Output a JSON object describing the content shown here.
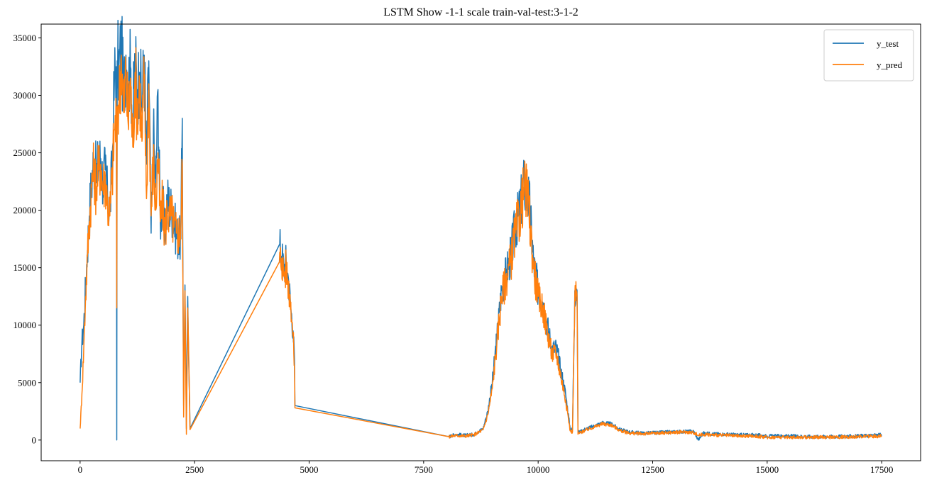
{
  "chart_data": {
    "type": "line",
    "title": "LSTM Show -1-1 scale train-val-test:3-1-2",
    "xlabel": "",
    "ylabel": "",
    "xlim": [
      -850,
      18350
    ],
    "ylim": [
      -1800,
      36200
    ],
    "xticks": [
      0,
      2500,
      5000,
      7500,
      10000,
      12500,
      15000,
      17500
    ],
    "xtick_labels": [
      "0",
      "2500",
      "5000",
      "7500",
      "10000",
      "12500",
      "15000",
      "17500"
    ],
    "yticks": [
      0,
      5000,
      10000,
      15000,
      20000,
      25000,
      30000,
      35000
    ],
    "ytick_labels": [
      "0",
      "5000",
      "10000",
      "15000",
      "20000",
      "25000",
      "30000",
      "35000"
    ],
    "grid": false,
    "legend": {
      "position": "top-right",
      "entries": [
        "y_test",
        "y_pred"
      ]
    },
    "colors": {
      "y_test": "#1f77b4",
      "y_pred": "#ff7f0e"
    },
    "series": [
      {
        "name": "y_test",
        "x": [
          0,
          40,
          80,
          120,
          160,
          200,
          250,
          300,
          350,
          400,
          450,
          500,
          550,
          600,
          650,
          700,
          750,
          790,
          800,
          810,
          850,
          900,
          950,
          1000,
          1050,
          1100,
          1150,
          1200,
          1250,
          1300,
          1350,
          1400,
          1450,
          1500,
          1550,
          1600,
          1650,
          1700,
          1750,
          1800,
          1850,
          1900,
          1950,
          2000,
          2050,
          2100,
          2150,
          2200,
          2230,
          2260,
          2290,
          2320,
          2350,
          2400,
          4350,
          4400,
          4450,
          4500,
          4550,
          4600,
          4650,
          4680,
          4690,
          8050,
          8200,
          8400,
          8600,
          8800,
          8900,
          9000,
          9100,
          9200,
          9300,
          9400,
          9500,
          9600,
          9700,
          9750,
          9800,
          9900,
          10000,
          10100,
          10200,
          10300,
          10400,
          10500,
          10600,
          10700,
          10750,
          10800,
          10850,
          10870,
          10890,
          10900,
          11000,
          11200,
          11400,
          11600,
          11800,
          12000,
          12300,
          12600,
          12900,
          13200,
          13400,
          13500,
          13600,
          13800,
          14100,
          14400,
          14700,
          15000,
          15500,
          16000,
          16500,
          17000,
          17500
        ],
        "values": [
          5000,
          8500,
          10000,
          13500,
          16500,
          19500,
          22500,
          24500,
          23000,
          24000,
          24500,
          22500,
          23500,
          21000,
          20000,
          24000,
          31500,
          32500,
          0,
          33000,
          32500,
          34500,
          30000,
          33500,
          31000,
          32500,
          28000,
          33000,
          30500,
          32000,
          29000,
          33500,
          24000,
          33000,
          18000,
          27000,
          22000,
          30500,
          19000,
          21000,
          17500,
          21000,
          20500,
          20000,
          19000,
          18000,
          17500,
          17500,
          28000,
          3000,
          13500,
          1000,
          12500,
          1000,
          17000,
          16000,
          15000,
          15500,
          14000,
          11500,
          9500,
          7000,
          3000,
          300,
          500,
          400,
          500,
          1000,
          2500,
          5000,
          9000,
          13000,
          14500,
          16000,
          18500,
          20000,
          22500,
          21000,
          21000,
          15500,
          13000,
          12000,
          10000,
          8000,
          8000,
          6000,
          4000,
          1000,
          900,
          13000,
          13000,
          700,
          800,
          700,
          900,
          1200,
          1500,
          1400,
          900,
          700,
          600,
          650,
          700,
          750,
          750,
          0,
          600,
          550,
          500,
          450,
          450,
          350,
          350,
          300,
          300,
          350,
          450
        ]
      },
      {
        "name": "y_pred",
        "x": [
          0,
          40,
          80,
          120,
          160,
          200,
          250,
          300,
          350,
          400,
          450,
          500,
          550,
          600,
          650,
          700,
          750,
          790,
          800,
          810,
          850,
          900,
          950,
          1000,
          1050,
          1100,
          1150,
          1200,
          1250,
          1300,
          1350,
          1400,
          1450,
          1500,
          1550,
          1600,
          1650,
          1700,
          1750,
          1800,
          1850,
          1900,
          1950,
          2000,
          2050,
          2100,
          2150,
          2200,
          2230,
          2260,
          2290,
          2320,
          2350,
          2400,
          4350,
          4400,
          4450,
          4500,
          4550,
          4600,
          4650,
          4680,
          4690,
          8050,
          8200,
          8400,
          8600,
          8800,
          8900,
          9000,
          9100,
          9200,
          9300,
          9400,
          9500,
          9600,
          9700,
          9750,
          9800,
          9900,
          10000,
          10100,
          10200,
          10300,
          10400,
          10500,
          10600,
          10700,
          10750,
          10800,
          10850,
          10870,
          10890,
          10900,
          11000,
          11200,
          11400,
          11600,
          11800,
          12000,
          12300,
          12600,
          12900,
          13200,
          13400,
          13500,
          13600,
          13800,
          14100,
          14400,
          14700,
          15000,
          15500,
          16000,
          16500,
          17000,
          17500
        ],
        "values": [
          1000,
          4000,
          8000,
          12500,
          16000,
          19000,
          22000,
          23500,
          22000,
          23500,
          24000,
          22000,
          23000,
          20500,
          19500,
          23000,
          27000,
          28000,
          11500,
          29000,
          29500,
          33500,
          28500,
          32000,
          27500,
          31500,
          25500,
          32000,
          28500,
          31000,
          26000,
          31500,
          21000,
          31000,
          19500,
          24500,
          20000,
          25000,
          19000,
          20500,
          18000,
          20000,
          19500,
          19500,
          18500,
          18000,
          18000,
          18500,
          24000,
          2000,
          13000,
          500,
          11500,
          900,
          15500,
          15800,
          14500,
          15000,
          13500,
          12000,
          9000,
          6500,
          2800,
          300,
          400,
          350,
          450,
          900,
          2200,
          4500,
          8500,
          12500,
          14000,
          15500,
          18000,
          19500,
          22000,
          21500,
          20000,
          15000,
          12500,
          11500,
          9500,
          7500,
          7500,
          5500,
          3500,
          800,
          700,
          12500,
          12500,
          500,
          600,
          600,
          800,
          1100,
          1400,
          1300,
          800,
          600,
          550,
          600,
          650,
          700,
          650,
          400,
          500,
          450,
          400,
          350,
          350,
          250,
          250,
          250,
          250,
          300,
          350
        ]
      }
    ]
  }
}
